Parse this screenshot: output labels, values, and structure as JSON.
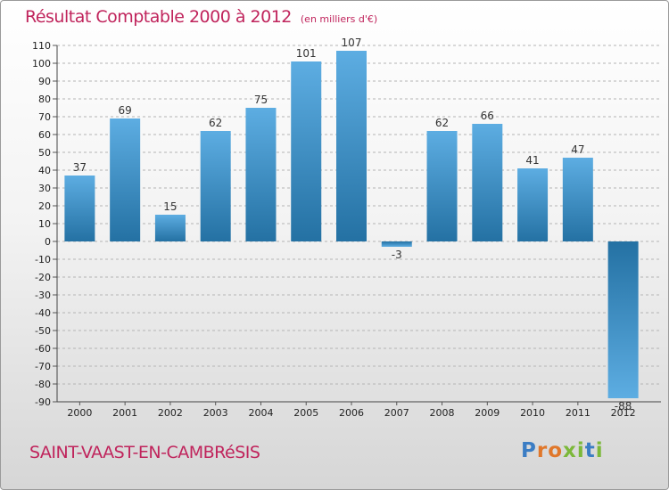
{
  "chart_data": {
    "type": "bar",
    "title": "Résultat Comptable 2000 à 2012",
    "subtitle": "(en milliers d'€)",
    "categories": [
      "2000",
      "2001",
      "2002",
      "2003",
      "2004",
      "2005",
      "2006",
      "2007",
      "2008",
      "2009",
      "2010",
      "2011",
      "2012"
    ],
    "values": [
      37,
      69,
      15,
      62,
      75,
      101,
      107,
      -3,
      62,
      66,
      41,
      47,
      -88
    ],
    "value_labels": [
      "37",
      "69",
      "15",
      "62",
      "75",
      "101",
      "107",
      "-3",
      "62",
      "66",
      "41",
      "47",
      "-88"
    ],
    "ylim": [
      -90,
      110
    ],
    "yticks": [
      110,
      100,
      90,
      80,
      70,
      60,
      50,
      40,
      30,
      20,
      10,
      0,
      -10,
      -20,
      -30,
      -40,
      -50,
      -60,
      -70,
      -80,
      -90
    ],
    "grid": "horizontal-dashed",
    "xlabel": "",
    "ylabel": ""
  },
  "footer": {
    "commune": "SAINT-VAAST-EN-CAMBRéSIS",
    "brand": "Proxiti"
  },
  "colors": {
    "accent": "#c0245c",
    "bar_light": "#5dade2",
    "bar_dark": "#2471a3",
    "grid": "#b4b4b4",
    "logo_letters": [
      "#3b7dc4",
      "#e0772a",
      "#e0772a",
      "#7cb83a",
      "#7cb83a",
      "#3b7dc4",
      "#7cb83a"
    ]
  }
}
